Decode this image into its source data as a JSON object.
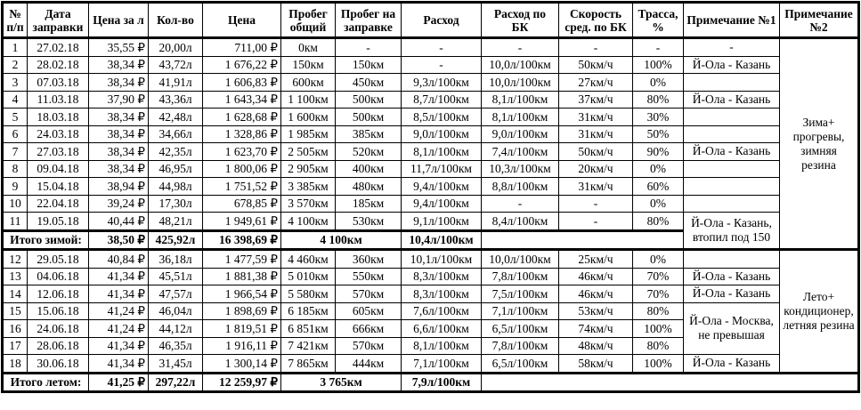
{
  "headers": [
    "№\nп/п",
    "Дата\nзаправки",
    "Цена за л",
    "Кол-во",
    "Цена",
    "Пробег\nобщий",
    "Пробег на\nзаправке",
    "Расход",
    "Расход по БК",
    "Скорость\nсред. по БК",
    "Трасса,\n%",
    "Примечание №1",
    "Примечание\n№2"
  ],
  "winter_rows": [
    [
      "1",
      "27.02.18",
      "35,55 ₽",
      "20,00л",
      "711,00 ₽",
      "0км",
      "-",
      "-",
      "-",
      "-",
      "-"
    ],
    [
      "2",
      "28.02.18",
      "38,34 ₽",
      "43,72л",
      "1 676,22 ₽",
      "150км",
      "150км",
      "-",
      "10,0л/100км",
      "50км/ч",
      "100%"
    ],
    [
      "3",
      "07.03.18",
      "38,34 ₽",
      "41,91л",
      "1 606,83 ₽",
      "600км",
      "450км",
      "9,3л/100км",
      "10,0л/100км",
      "27км/ч",
      "0%"
    ],
    [
      "4",
      "11.03.18",
      "37,90 ₽",
      "43,36л",
      "1 643,34 ₽",
      "1 100км",
      "500км",
      "8,7л/100км",
      "8,1л/100км",
      "37км/ч",
      "80%"
    ],
    [
      "5",
      "18.03.18",
      "38,34 ₽",
      "42,48л",
      "1 628,68 ₽",
      "1 600км",
      "500км",
      "8,5л/100км",
      "8,1л/100км",
      "31км/ч",
      "30%"
    ],
    [
      "6",
      "24.03.18",
      "38,34 ₽",
      "34,66л",
      "1 328,86 ₽",
      "1 985км",
      "385км",
      "9,0л/100км",
      "9,0л/100км",
      "31км/ч",
      "50%"
    ],
    [
      "7",
      "27.03.18",
      "38,34 ₽",
      "42,35л",
      "1 623,70 ₽",
      "2 505км",
      "520км",
      "8,1л/100км",
      "7,4л/100км",
      "50км/ч",
      "90%"
    ],
    [
      "8",
      "09.04.18",
      "38,34 ₽",
      "46,95л",
      "1 800,06 ₽",
      "2 905км",
      "400км",
      "11,7л/100км",
      "10,3л/100км",
      "20км/ч",
      "0%"
    ],
    [
      "9",
      "15.04.18",
      "38,94 ₽",
      "44,98л",
      "1 751,52 ₽",
      "3 385км",
      "480км",
      "9,4л/100км",
      "8,8л/100км",
      "31км/ч",
      "60%"
    ],
    [
      "10",
      "22.04.18",
      "39,24 ₽",
      "17,30л",
      "678,85 ₽",
      "3 570км",
      "185км",
      "9,4л/100км",
      "-",
      "-",
      "0%"
    ],
    [
      "11",
      "19.05.18",
      "40,44 ₽",
      "48,21л",
      "1 949,61 ₽",
      "4 100км",
      "530км",
      "9,1л/100км",
      "8,4л/100км",
      "-",
      "80%"
    ]
  ],
  "winter_total": {
    "label": "Итого зимой:",
    "avg_price": "38,50 ₽",
    "qty": "425,92л",
    "cost": "16 398,69 ₽",
    "distance": "4 100км",
    "consumption": "10,4л/100км"
  },
  "summer_rows": [
    [
      "12",
      "29.05.18",
      "40,84 ₽",
      "36,18л",
      "1 477,59 ₽",
      "4 460км",
      "360км",
      "10,1л/100км",
      "10,0л/100км",
      "25км/ч",
      "0%"
    ],
    [
      "13",
      "04.06.18",
      "41,34 ₽",
      "45,51л",
      "1 881,38 ₽",
      "5 010км",
      "550км",
      "8,3л/100км",
      "7,8л/100км",
      "46км/ч",
      "70%"
    ],
    [
      "14",
      "12.06.18",
      "41,34 ₽",
      "47,57л",
      "1 966,54 ₽",
      "5 580км",
      "570км",
      "8,3л/100км",
      "7,5л/100км",
      "46км/ч",
      "70%"
    ],
    [
      "15",
      "15.06.18",
      "41,24 ₽",
      "46,04л",
      "1 898,69 ₽",
      "6 185км",
      "605км",
      "7,6л/100км",
      "7,1л/100км",
      "53км/ч",
      "80%"
    ],
    [
      "16",
      "24.06.18",
      "41,24 ₽",
      "44,12л",
      "1 819,51 ₽",
      "6 851км",
      "666км",
      "6,6л/100км",
      "6,5л/100км",
      "74км/ч",
      "100%"
    ],
    [
      "17",
      "28.06.18",
      "41,34 ₽",
      "46,35л",
      "1 916,11 ₽",
      "7 421км",
      "570км",
      "8,1л/100км",
      "7,8л/100км",
      "48км/ч",
      "80%"
    ],
    [
      "18",
      "30.06.18",
      "41,34 ₽",
      "31,45л",
      "1 300,14 ₽",
      "7 865км",
      "444км",
      "7,1л/100км",
      "6,5л/100км",
      "58км/ч",
      "100%"
    ]
  ],
  "summer_total": {
    "label": "Итого летом:",
    "avg_price": "41,25 ₽",
    "qty": "297,22л",
    "cost": "12 259,97 ₽",
    "distance": "3 765км",
    "consumption": "7,9л/100км"
  },
  "notes1": [
    "-",
    "Й-Ола - Казань",
    "",
    "Й-Ола - Казань",
    "",
    "",
    "Й-Ола - Казань",
    "",
    "",
    "",
    "Й-Ола - Казань,\nвтопил под 150",
    "",
    "Й-Ола - Казань",
    "Й-Ола - Казань",
    "Й-Ола - Москва,\nне превышая",
    "Й-Ола - Казань"
  ],
  "notes2": [
    "Зима+\nпрогревы,\nзимняя резина",
    "Лето+\nкондиционер,\nлетняя резина"
  ]
}
